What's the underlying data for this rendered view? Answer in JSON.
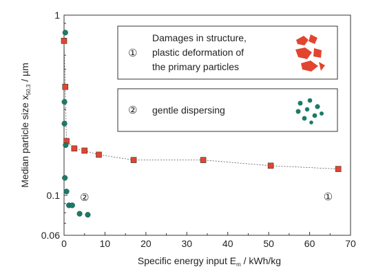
{
  "chart_data": {
    "type": "scatter",
    "xlabel": "Specific energy input E",
    "xlabel_sub": "m",
    "xlabel_unit": " / kWh/kg",
    "ylabel": "Median particle size  x",
    "ylabel_sub": "50,3",
    "ylabel_unit": " / µm",
    "xlim": [
      0,
      70
    ],
    "ylim": [
      0.06,
      1
    ],
    "yscale": "log",
    "x_ticks": [
      0,
      10,
      20,
      30,
      40,
      50,
      60,
      70
    ],
    "y_ticks": [
      {
        "value": 1,
        "label": "1"
      },
      {
        "value": 0.1,
        "label": "0.1"
      },
      {
        "value": 0.06,
        "label": "0.06"
      }
    ],
    "grid": false,
    "series": [
      {
        "marker": "square",
        "color": "#e2452f",
        "points": [
          {
            "x": 0.0,
            "y": 0.72
          },
          {
            "x": 0.3,
            "y": 0.4
          },
          {
            "x": 0.6,
            "y": 0.2
          },
          {
            "x": 2.5,
            "y": 0.182
          },
          {
            "x": 5.0,
            "y": 0.177
          },
          {
            "x": 8.5,
            "y": 0.168
          },
          {
            "x": 17.0,
            "y": 0.157
          },
          {
            "x": 34.0,
            "y": 0.157
          },
          {
            "x": 50.5,
            "y": 0.146
          },
          {
            "x": 67.0,
            "y": 0.14
          }
        ]
      },
      {
        "marker": "circle",
        "color": "#1d7a68",
        "points": [
          {
            "x": 0.3,
            "y": 0.8
          },
          {
            "x": 0.1,
            "y": 0.33
          },
          {
            "x": 0.1,
            "y": 0.25
          },
          {
            "x": 0.4,
            "y": 0.19
          },
          {
            "x": 0.2,
            "y": 0.125
          },
          {
            "x": 0.6,
            "y": 0.105
          },
          {
            "x": 1.2,
            "y": 0.088
          },
          {
            "x": 2.0,
            "y": 0.088
          },
          {
            "x": 3.8,
            "y": 0.079
          },
          {
            "x": 5.8,
            "y": 0.078
          }
        ]
      }
    ],
    "annotations": [
      {
        "text": "①",
        "x": 64.5,
        "y": 0.094
      },
      {
        "text": "②",
        "x": 5.0,
        "y": 0.093
      }
    ]
  },
  "legend": {
    "items": [
      {
        "symbol": "①",
        "lines": [
          "Damages in structure,",
          "plastic deformation of",
          "the primary particles"
        ],
        "icon": "red-fragments-icon",
        "color": "#e2452f"
      },
      {
        "symbol": "②",
        "lines": [
          "gentle dispersing"
        ],
        "icon": "teal-particles-icon",
        "color": "#1d7a68"
      }
    ]
  }
}
